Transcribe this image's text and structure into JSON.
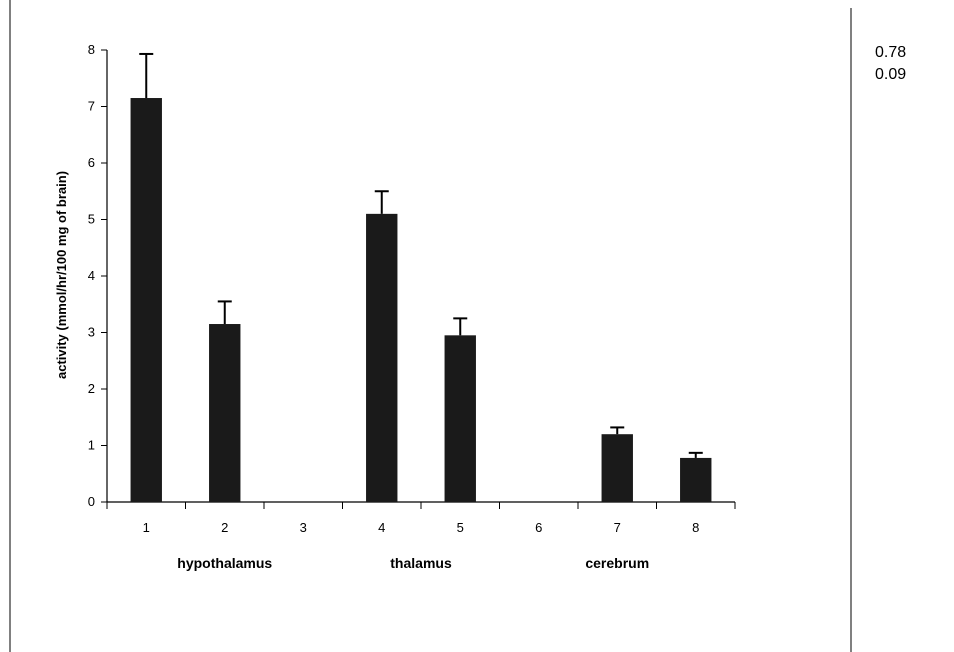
{
  "chart_data": {
    "type": "bar",
    "categories": [
      "1",
      "2",
      "3",
      "4",
      "5",
      "6",
      "7",
      "8"
    ],
    "values": [
      7.15,
      3.15,
      null,
      5.1,
      2.95,
      null,
      1.2,
      0.78
    ],
    "errors": [
      0.78,
      0.4,
      null,
      0.4,
      0.3,
      null,
      0.12,
      0.09
    ],
    "group_labels": [
      {
        "label": "hypothalamus",
        "center": 2
      },
      {
        "label": "thalamus",
        "center": 4.5
      },
      {
        "label": "cerebrum",
        "center": 7
      }
    ],
    "title": "",
    "xlabel": "",
    "ylabel": "activity (mmol/hr/100 mg of brain)",
    "ylim": [
      0,
      8
    ],
    "yticks": [
      0,
      1,
      2,
      3,
      4,
      5,
      6,
      7,
      8
    ],
    "grid": false,
    "legend": "none",
    "bar_color": "#1a1a1a"
  },
  "side_values": [
    "0.78",
    "0.09"
  ]
}
